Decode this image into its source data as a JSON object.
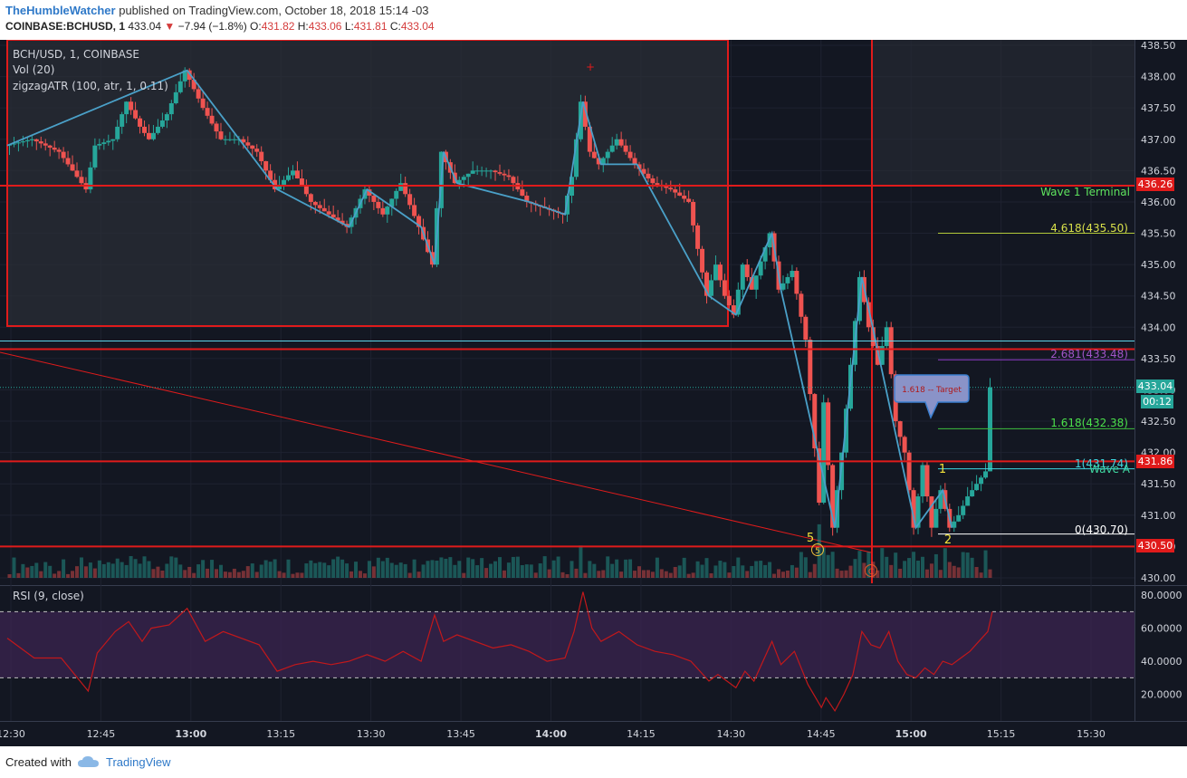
{
  "header": {
    "publisher": "TheHumbleWatcher",
    "published_text": "published on TradingView.com, October 18, 2018 15:14 -03",
    "symbol_line": "COINBASE:BCHUSD, 1",
    "last": "433.04",
    "change": "−7.94 (−1.8%)",
    "o_label": "O:",
    "o": "431.82",
    "h_label": "H:",
    "h": "433.06",
    "l_label": "L:",
    "l": "431.81",
    "c_label": "C:",
    "c": "433.04"
  },
  "legend": {
    "title": "BCH/USD, 1, COINBASE",
    "vol": "Vol (20)",
    "zigzag": "zigzagATR (100, atr, 1, 0.11)",
    "rsi": "RSI (9, close)"
  },
  "annotations": {
    "wave1_terminal": "Wave 1 Terminal",
    "fib_4618": "4.618(435.50)",
    "fib_2681": "2.681(433.48)",
    "fib_1618": "1.618(432.38)",
    "fib_1": "1(431.74)",
    "wave_a": "Wave A",
    "fib_0": "0(430.70)",
    "target_callout": "1.618 -- Target",
    "wave_num_5": "5",
    "wave_num_1": "1",
    "wave_num_2": "2",
    "circle_5": "5",
    "circle_c": "C"
  },
  "price_tags": {
    "upper_red": "436.26",
    "current": "433.04",
    "timer": "00:12",
    "middle_red": "431.86",
    "lower_red": "430.50"
  },
  "footer": {
    "created_with": "Created with",
    "brand": "TradingView"
  },
  "colors": {
    "background": "#131722",
    "up": "#26a69a",
    "down": "#ef5350",
    "zigzag": "#4aa0c8",
    "red_level": "#e01b1b",
    "rsi_line": "#c2181b",
    "rsi_band": "#3b2450"
  },
  "chart_data": {
    "type": "candlestick",
    "price_axis": {
      "min": 430.0,
      "max": 438.5,
      "ticks": [
        "438.50",
        "438.00",
        "437.50",
        "437.00",
        "436.50",
        "436.00",
        "435.50",
        "435.00",
        "434.50",
        "434.00",
        "433.50",
        "433.00",
        "432.50",
        "432.00",
        "431.50",
        "431.00",
        "430.50",
        "430.00"
      ]
    },
    "rsi_axis": {
      "min": 5,
      "max": 85,
      "ticks": [
        "80.0000",
        "60.0000",
        "40.0000",
        "20.0000"
      ],
      "bands": [
        30,
        70
      ]
    },
    "time_axis": {
      "labels": [
        "12:30",
        "12:45",
        "13:00",
        "13:15",
        "13:30",
        "13:45",
        "14:00",
        "14:15",
        "14:30",
        "14:45",
        "15:00",
        "15:15",
        "15:30"
      ]
    },
    "levels": [
      436.26,
      433.65,
      431.86,
      430.5
    ],
    "current_price": 433.04,
    "cyan_level": 433.78,
    "price_path": [
      [
        0,
        436.9
      ],
      [
        6,
        437.0
      ],
      [
        12,
        436.8
      ],
      [
        18,
        436.2
      ],
      [
        20,
        436.9
      ],
      [
        24,
        437.0
      ],
      [
        27,
        437.6
      ],
      [
        30,
        437.2
      ],
      [
        32,
        437.0
      ],
      [
        36,
        437.4
      ],
      [
        40,
        438.1
      ],
      [
        44,
        437.5
      ],
      [
        48,
        437.0
      ],
      [
        52,
        437.0
      ],
      [
        56,
        436.8
      ],
      [
        60,
        436.2
      ],
      [
        64,
        436.5
      ],
      [
        68,
        436.0
      ],
      [
        72,
        435.8
      ],
      [
        76,
        435.6
      ],
      [
        80,
        436.2
      ],
      [
        84,
        435.8
      ],
      [
        88,
        436.3
      ],
      [
        92,
        435.6
      ],
      [
        95,
        435.0
      ],
      [
        97,
        436.8
      ],
      [
        100,
        436.3
      ],
      [
        104,
        436.5
      ],
      [
        108,
        436.5
      ],
      [
        112,
        436.4
      ],
      [
        116,
        436.0
      ],
      [
        120,
        435.9
      ],
      [
        124,
        435.8
      ],
      [
        126,
        436.4
      ],
      [
        128,
        437.6
      ],
      [
        130,
        436.8
      ],
      [
        132,
        436.6
      ],
      [
        136,
        437.0
      ],
      [
        140,
        436.6
      ],
      [
        144,
        436.3
      ],
      [
        148,
        436.2
      ],
      [
        152,
        436.0
      ],
      [
        156,
        434.5
      ],
      [
        158,
        435.0
      ],
      [
        160,
        434.5
      ],
      [
        162,
        434.2
      ],
      [
        164,
        435.0
      ],
      [
        166,
        434.6
      ],
      [
        170,
        435.5
      ],
      [
        172,
        434.6
      ],
      [
        175,
        434.9
      ],
      [
        178,
        433.8
      ],
      [
        181,
        431.2
      ],
      [
        182,
        432.8
      ],
      [
        184,
        430.8
      ],
      [
        186,
        432.0
      ],
      [
        188,
        433.4
      ],
      [
        190,
        434.8
      ],
      [
        192,
        434.0
      ],
      [
        194,
        433.4
      ],
      [
        196,
        434.0
      ],
      [
        198,
        432.5
      ],
      [
        200,
        432.0
      ],
      [
        202,
        430.8
      ],
      [
        204,
        431.8
      ],
      [
        206,
        430.8
      ],
      [
        208,
        431.4
      ],
      [
        210,
        430.8
      ],
      [
        212,
        431.0
      ],
      [
        214,
        431.3
      ],
      [
        216,
        431.5
      ],
      [
        218,
        431.7
      ],
      [
        219,
        433.04
      ]
    ],
    "rsi_path": [
      [
        0,
        54
      ],
      [
        6,
        42
      ],
      [
        12,
        42
      ],
      [
        18,
        22
      ],
      [
        20,
        45
      ],
      [
        24,
        58
      ],
      [
        27,
        64
      ],
      [
        30,
        52
      ],
      [
        32,
        60
      ],
      [
        36,
        62
      ],
      [
        40,
        72
      ],
      [
        44,
        52
      ],
      [
        48,
        58
      ],
      [
        52,
        54
      ],
      [
        56,
        50
      ],
      [
        60,
        34
      ],
      [
        64,
        38
      ],
      [
        68,
        40
      ],
      [
        72,
        38
      ],
      [
        76,
        40
      ],
      [
        80,
        44
      ],
      [
        84,
        40
      ],
      [
        88,
        46
      ],
      [
        92,
        40
      ],
      [
        95,
        68
      ],
      [
        97,
        52
      ],
      [
        100,
        56
      ],
      [
        104,
        52
      ],
      [
        108,
        48
      ],
      [
        112,
        50
      ],
      [
        116,
        46
      ],
      [
        120,
        40
      ],
      [
        124,
        42
      ],
      [
        126,
        58
      ],
      [
        128,
        82
      ],
      [
        130,
        60
      ],
      [
        132,
        52
      ],
      [
        136,
        58
      ],
      [
        140,
        50
      ],
      [
        144,
        46
      ],
      [
        148,
        44
      ],
      [
        152,
        40
      ],
      [
        156,
        28
      ],
      [
        158,
        32
      ],
      [
        160,
        28
      ],
      [
        162,
        24
      ],
      [
        164,
        34
      ],
      [
        166,
        28
      ],
      [
        170,
        52
      ],
      [
        172,
        38
      ],
      [
        175,
        46
      ],
      [
        178,
        26
      ],
      [
        181,
        12
      ],
      [
        182,
        18
      ],
      [
        184,
        10
      ],
      [
        186,
        20
      ],
      [
        188,
        32
      ],
      [
        190,
        58
      ],
      [
        192,
        50
      ],
      [
        194,
        48
      ],
      [
        196,
        58
      ],
      [
        198,
        40
      ],
      [
        200,
        32
      ],
      [
        202,
        30
      ],
      [
        204,
        36
      ],
      [
        206,
        32
      ],
      [
        208,
        40
      ],
      [
        210,
        38
      ],
      [
        212,
        42
      ],
      [
        214,
        46
      ],
      [
        216,
        52
      ],
      [
        218,
        58
      ],
      [
        219,
        70
      ]
    ],
    "x_span": 250
  }
}
